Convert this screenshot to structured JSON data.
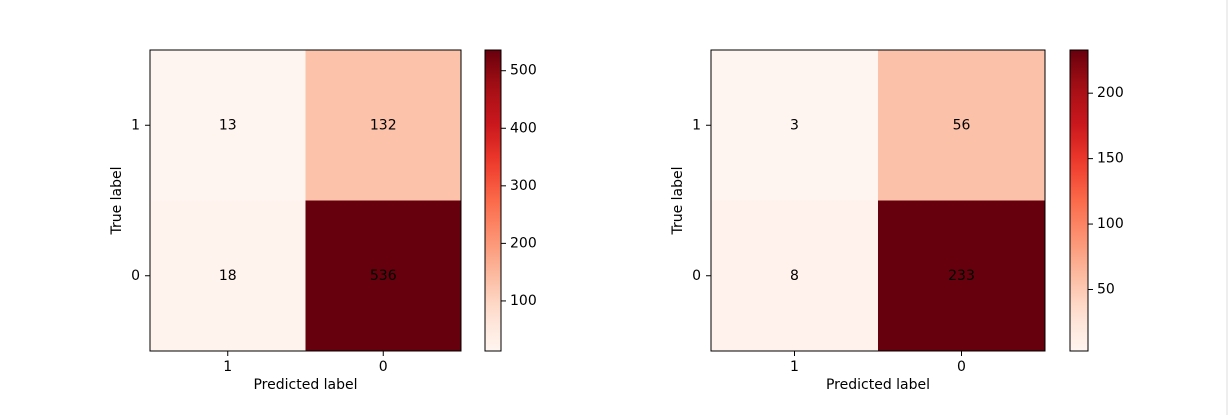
{
  "chart_data": [
    {
      "type": "heatmap",
      "x_categories": [
        "1",
        "0"
      ],
      "y_categories": [
        "1",
        "0"
      ],
      "values": [
        [
          13,
          132
        ],
        [
          18,
          536
        ]
      ],
      "xlabel": "Predicted label",
      "ylabel": "True label",
      "colormap": "Reds",
      "clim": [
        13,
        536
      ],
      "colorbar_ticks": [
        100,
        200,
        300,
        400,
        500
      ]
    },
    {
      "type": "heatmap",
      "x_categories": [
        "1",
        "0"
      ],
      "y_categories": [
        "1",
        "0"
      ],
      "values": [
        [
          3,
          56
        ],
        [
          8,
          233
        ]
      ],
      "xlabel": "Predicted label",
      "ylabel": "True label",
      "colormap": "Reds",
      "clim": [
        3,
        233
      ],
      "colorbar_ticks": [
        50,
        100,
        150,
        200
      ]
    }
  ]
}
